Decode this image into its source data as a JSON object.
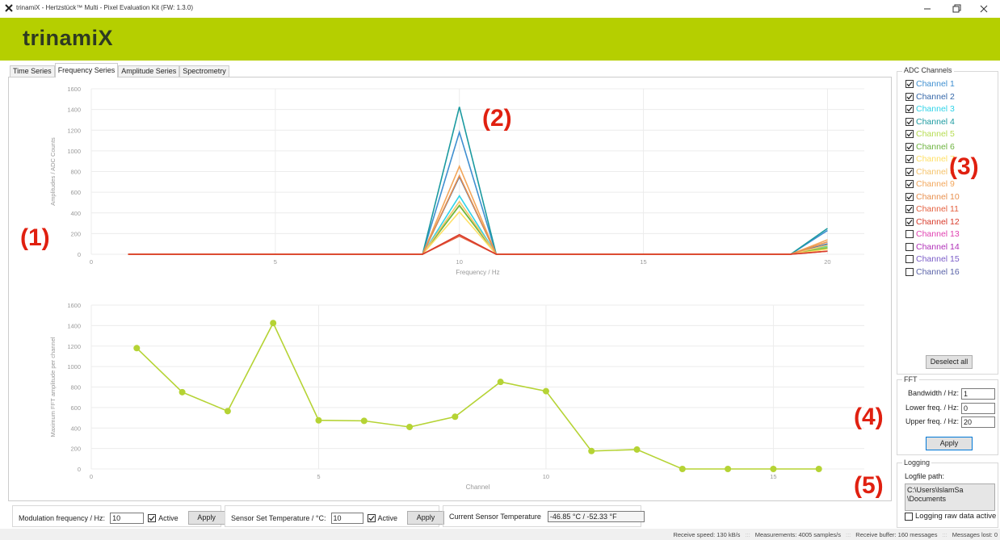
{
  "window": {
    "title": "trinamiX - Hertzstück™ Multi - Pixel Evaluation Kit (FW: 1.3.0)"
  },
  "header": {
    "logo": "trinamiX"
  },
  "tabs": [
    {
      "label": "Time Series",
      "active": false
    },
    {
      "label": "Frequency Series",
      "active": true
    },
    {
      "label": "Amplitude Series",
      "active": false
    },
    {
      "label": "Spectrometry",
      "active": false
    }
  ],
  "chart_data": [
    {
      "type": "line",
      "x_label": "Frequency / Hz",
      "y_label": "Amplitudes / ADC Counts",
      "x": [
        1,
        2,
        3,
        4,
        5,
        6,
        7,
        8,
        9,
        10,
        11,
        12,
        13,
        14,
        15,
        16,
        17,
        18,
        19,
        20
      ],
      "xlim": [
        0,
        21
      ],
      "xticks": [
        0,
        5,
        10,
        15,
        20
      ],
      "ylim": [
        0,
        1600
      ],
      "yticks": [
        0,
        200,
        400,
        600,
        800,
        1000,
        1200,
        1400,
        1600
      ],
      "grid": true,
      "series": [
        {
          "name": "Channel 1",
          "color": "#3f8fd0",
          "checked": true,
          "values": [
            0,
            0,
            0,
            0,
            0,
            0,
            0,
            0,
            0,
            1180,
            0,
            0,
            0,
            0,
            0,
            0,
            0,
            0,
            0,
            230
          ]
        },
        {
          "name": "Channel 2",
          "color": "#3567a8",
          "checked": true,
          "values": [
            0,
            0,
            0,
            0,
            0,
            0,
            0,
            0,
            0,
            750,
            0,
            0,
            0,
            0,
            0,
            0,
            0,
            0,
            0,
            100
          ]
        },
        {
          "name": "Channel 3",
          "color": "#2fd3e8",
          "checked": true,
          "values": [
            0,
            0,
            0,
            0,
            0,
            0,
            0,
            0,
            0,
            565,
            0,
            0,
            0,
            0,
            0,
            0,
            0,
            0,
            0,
            80
          ]
        },
        {
          "name": "Channel 4",
          "color": "#1b9aa0",
          "checked": true,
          "values": [
            0,
            0,
            0,
            0,
            0,
            0,
            0,
            0,
            0,
            1425,
            0,
            0,
            0,
            0,
            0,
            0,
            0,
            0,
            0,
            250
          ]
        },
        {
          "name": "Channel 5",
          "color": "#b5dc50",
          "checked": true,
          "values": [
            0,
            0,
            0,
            0,
            0,
            0,
            0,
            0,
            0,
            475,
            0,
            0,
            0,
            0,
            0,
            0,
            0,
            0,
            0,
            70
          ]
        },
        {
          "name": "Channel 6",
          "color": "#6db33f",
          "checked": true,
          "values": [
            0,
            0,
            0,
            0,
            0,
            0,
            0,
            0,
            0,
            470,
            0,
            0,
            0,
            0,
            0,
            0,
            0,
            0,
            0,
            60
          ]
        },
        {
          "name": "Channel 7",
          "color": "#ffe066",
          "checked": true,
          "values": [
            0,
            0,
            0,
            0,
            0,
            0,
            0,
            0,
            0,
            410,
            0,
            0,
            0,
            0,
            0,
            0,
            0,
            0,
            0,
            50
          ]
        },
        {
          "name": "Channel 8",
          "color": "#f5c36b",
          "checked": true,
          "values": [
            0,
            0,
            0,
            0,
            0,
            0,
            0,
            0,
            0,
            510,
            0,
            0,
            0,
            0,
            0,
            0,
            0,
            0,
            0,
            90
          ]
        },
        {
          "name": "Channel 9",
          "color": "#f2a65a",
          "checked": true,
          "values": [
            0,
            0,
            0,
            0,
            0,
            0,
            0,
            0,
            0,
            850,
            0,
            0,
            0,
            0,
            0,
            0,
            0,
            0,
            0,
            140
          ]
        },
        {
          "name": "Channel 10",
          "color": "#e8904f",
          "checked": true,
          "values": [
            0,
            0,
            0,
            0,
            0,
            0,
            0,
            0,
            0,
            760,
            0,
            0,
            0,
            0,
            0,
            0,
            0,
            0,
            0,
            120
          ]
        },
        {
          "name": "Channel 11",
          "color": "#e5603f",
          "checked": true,
          "values": [
            0,
            0,
            0,
            0,
            0,
            0,
            0,
            0,
            0,
            175,
            0,
            0,
            0,
            0,
            0,
            0,
            0,
            0,
            0,
            30
          ]
        },
        {
          "name": "Channel 12",
          "color": "#d83a2a",
          "checked": true,
          "values": [
            0,
            0,
            0,
            0,
            0,
            0,
            0,
            0,
            0,
            190,
            0,
            0,
            0,
            0,
            0,
            0,
            0,
            0,
            0,
            30
          ]
        }
      ]
    },
    {
      "type": "line",
      "x_label": "Channel",
      "y_label": "Maximum FFT amplitude per channel",
      "x": [
        1,
        2,
        3,
        4,
        5,
        6,
        7,
        8,
        9,
        10,
        11,
        12,
        13,
        14,
        15,
        16
      ],
      "values": [
        1180,
        750,
        565,
        1425,
        475,
        470,
        410,
        510,
        850,
        760,
        175,
        190,
        0,
        0,
        0,
        0
      ],
      "color": "#b5d334",
      "markers": true,
      "xlim": [
        0,
        17
      ],
      "xticks": [
        0,
        5,
        10,
        15
      ],
      "ylim": [
        0,
        1600
      ],
      "yticks": [
        0,
        200,
        400,
        600,
        800,
        1000,
        1200,
        1400,
        1600
      ],
      "grid": true
    }
  ],
  "adc_channels": {
    "title": "ADC Channels",
    "more_channels": [
      {
        "name": "Channel 13",
        "color": "#e040b0",
        "checked": false
      },
      {
        "name": "Channel 14",
        "color": "#b030b8",
        "checked": false
      },
      {
        "name": "Channel 15",
        "color": "#7a5cc8",
        "checked": false
      },
      {
        "name": "Channel 16",
        "color": "#5a63a8",
        "checked": false
      }
    ],
    "button": "Deselect all"
  },
  "fft": {
    "title": "FFT",
    "fields": [
      {
        "label": "Bandwidth / Hz:",
        "value": 1
      },
      {
        "label": "Lower freq. / Hz:",
        "value": 0
      },
      {
        "label": "Upper freq. / Hz:",
        "value": 20
      }
    ],
    "button": "Apply"
  },
  "logging": {
    "title": "Logging",
    "path_label": "Logfile path:",
    "path": [
      "C:\\Users\\lslamSa",
      "\\Documents"
    ],
    "checkbox": {
      "label": "Logging raw data active",
      "checked": false
    }
  },
  "bottom_controls": [
    {
      "label": "Modulation frequency / Hz:",
      "value": 10,
      "checkbox": {
        "label": "Active",
        "checked": true
      },
      "button": "Apply"
    },
    {
      "label": "Sensor Set Temperature / °C:",
      "value": 10,
      "checkbox": {
        "label": "Active",
        "checked": true
      },
      "button": "Apply"
    },
    {
      "label": "Current Sensor Temperature",
      "value": "-46.85 °C / -52.33 °F"
    }
  ],
  "status_bar": {
    "items": [
      "Receive speed: 130 kB/s",
      "Measurements: 4005 samples/s",
      "Receive buffer: 160 messages",
      "Messages lost: 0"
    ],
    "separator": ":::"
  },
  "annotations": [
    "(1)",
    "(2)",
    "(3)",
    "(4)",
    "(5)"
  ]
}
